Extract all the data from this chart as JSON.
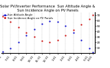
{
  "title": "Solar PV/Inverter Performance  Sun Altitude Angle & Sun Incidence Angle on PV Panels",
  "legend_blue": "Sun Altitude —",
  "legend_red": "Sun Incidence Angle on PV Panels  •",
  "x_labels": [
    "6:31",
    "7:31",
    "8:31",
    "9:31",
    "10:31",
    "11:31",
    "12:31",
    "1:31",
    "2:31",
    "3:31",
    "4:31",
    "5:31",
    "6:01"
  ],
  "x_values": [
    0,
    1,
    2,
    3,
    4,
    5,
    6,
    7,
    8,
    9,
    10,
    11,
    11.5
  ],
  "blue_y": [
    2,
    9,
    20,
    33,
    44,
    54,
    59,
    57,
    50,
    38,
    24,
    9,
    1
  ],
  "red_y": [
    68,
    58,
    48,
    38,
    30,
    22,
    20,
    24,
    32,
    42,
    52,
    63,
    70
  ],
  "ylim": [
    0,
    75
  ],
  "ylabel_right_ticks": [
    10,
    20,
    30,
    40,
    50,
    60,
    70
  ],
  "background_color": "#ffffff",
  "blue_color": "#0000cc",
  "red_color": "#cc0000",
  "grid_color": "#888888",
  "title_fontsize": 3.8,
  "tick_fontsize": 3.0,
  "legend_fontsize": 2.8
}
